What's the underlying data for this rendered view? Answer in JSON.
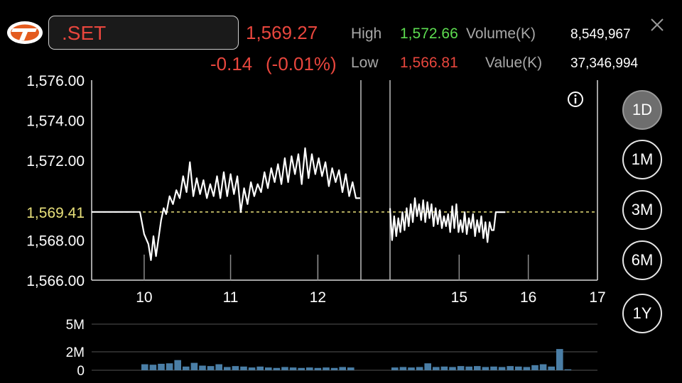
{
  "symbol": ".SET",
  "quote": {
    "last": "1,569.27",
    "change": "-0.14",
    "change_pct": "(-0.01%)",
    "high_label": "High",
    "high": "1,572.66",
    "low_label": "Low",
    "low": "1,566.81",
    "volume_label": "Volume(K)",
    "volume": "8,549,967",
    "value_label": "Value(K)",
    "value": "37,346,994"
  },
  "colors": {
    "down": "#e8463d",
    "up": "#5ddc50",
    "reference": "#e8e07a",
    "volume_bar": "#4a7ea6"
  },
  "icons": {
    "logo": "broker-logo-icon",
    "close": "close-icon",
    "info": "info-icon"
  },
  "periods": [
    {
      "label": "1D",
      "active": true
    },
    {
      "label": "1M",
      "active": false
    },
    {
      "label": "3M",
      "active": false
    },
    {
      "label": "6M",
      "active": false
    },
    {
      "label": "1Y",
      "active": false
    }
  ],
  "chart_data": [
    {
      "type": "line",
      "title": "",
      "ylim": [
        1566,
        1576
      ],
      "y_tick_labels": [
        "1,576.00",
        "1,574.00",
        "1,572.00",
        "1,568.00",
        "1,566.00"
      ],
      "y_ticks": [
        1576,
        1574,
        1572,
        1568,
        1566
      ],
      "reference": {
        "label": "1,569.41",
        "value": 1569.41
      },
      "x_tick_labels": [
        "10",
        "11",
        "12",
        "15",
        "16",
        "17"
      ],
      "sessions": [
        {
          "x_range": [
            9.33,
            12.5
          ],
          "series": [
            [
              9.33,
              1569.41
            ],
            [
              9.9,
              1569.41
            ],
            [
              9.95,
              1568.3
            ],
            [
              10.0,
              1567.8
            ],
            [
              10.03,
              1567.0
            ],
            [
              10.06,
              1568.2
            ],
            [
              10.09,
              1567.2
            ],
            [
              10.12,
              1568.1
            ],
            [
              10.15,
              1569.0
            ],
            [
              10.18,
              1569.6
            ],
            [
              10.21,
              1569.3
            ],
            [
              10.25,
              1570.2
            ],
            [
              10.29,
              1569.8
            ],
            [
              10.33,
              1570.5
            ],
            [
              10.37,
              1570.1
            ],
            [
              10.41,
              1571.2
            ],
            [
              10.45,
              1570.4
            ],
            [
              10.49,
              1571.9
            ],
            [
              10.53,
              1570.2
            ],
            [
              10.57,
              1571.1
            ],
            [
              10.61,
              1570.3
            ],
            [
              10.65,
              1571.0
            ],
            [
              10.69,
              1570.1
            ],
            [
              10.73,
              1570.8
            ],
            [
              10.77,
              1570.2
            ],
            [
              10.81,
              1571.2
            ],
            [
              10.85,
              1570.1
            ],
            [
              10.89,
              1571.4
            ],
            [
              10.93,
              1570.2
            ],
            [
              10.97,
              1571.3
            ],
            [
              11.01,
              1570.3
            ],
            [
              11.05,
              1571.2
            ],
            [
              11.09,
              1569.4
            ],
            [
              11.13,
              1570.6
            ],
            [
              11.17,
              1569.8
            ],
            [
              11.21,
              1570.9
            ],
            [
              11.25,
              1570.2
            ],
            [
              11.29,
              1570.8
            ],
            [
              11.33,
              1570.4
            ],
            [
              11.37,
              1571.4
            ],
            [
              11.41,
              1570.6
            ],
            [
              11.45,
              1571.6
            ],
            [
              11.49,
              1570.9
            ],
            [
              11.53,
              1571.8
            ],
            [
              11.57,
              1570.8
            ],
            [
              11.61,
              1572.1
            ],
            [
              11.65,
              1570.9
            ],
            [
              11.69,
              1572.2
            ],
            [
              11.73,
              1571.3
            ],
            [
              11.77,
              1572.3
            ],
            [
              11.81,
              1570.8
            ],
            [
              11.85,
              1572.6
            ],
            [
              11.89,
              1571.1
            ],
            [
              11.93,
              1572.3
            ],
            [
              11.97,
              1571.3
            ],
            [
              12.01,
              1572.1
            ],
            [
              12.05,
              1571.2
            ],
            [
              12.09,
              1571.9
            ],
            [
              12.13,
              1570.7
            ],
            [
              12.17,
              1571.6
            ],
            [
              12.21,
              1570.9
            ],
            [
              12.25,
              1571.5
            ],
            [
              12.29,
              1570.4
            ],
            [
              12.33,
              1571.3
            ],
            [
              12.37,
              1570.2
            ],
            [
              12.41,
              1570.9
            ],
            [
              12.45,
              1570.1
            ],
            [
              12.5,
              1570.1
            ]
          ]
        },
        {
          "x_range": [
            14.0,
            17.0
          ],
          "series": [
            [
              14.0,
              1569.6
            ],
            [
              14.03,
              1568.0
            ],
            [
              14.06,
              1569.2
            ],
            [
              14.09,
              1568.2
            ],
            [
              14.12,
              1569.1
            ],
            [
              14.15,
              1568.4
            ],
            [
              14.18,
              1569.4
            ],
            [
              14.21,
              1568.5
            ],
            [
              14.24,
              1569.6
            ],
            [
              14.27,
              1568.7
            ],
            [
              14.3,
              1569.8
            ],
            [
              14.33,
              1568.9
            ],
            [
              14.36,
              1570.1
            ],
            [
              14.39,
              1569.2
            ],
            [
              14.42,
              1569.8
            ],
            [
              14.45,
              1569.0
            ],
            [
              14.48,
              1570.0
            ],
            [
              14.51,
              1568.9
            ],
            [
              14.54,
              1569.9
            ],
            [
              14.57,
              1569.1
            ],
            [
              14.6,
              1569.8
            ],
            [
              14.63,
              1568.7
            ],
            [
              14.66,
              1569.6
            ],
            [
              14.69,
              1568.8
            ],
            [
              14.72,
              1569.5
            ],
            [
              14.75,
              1568.6
            ],
            [
              14.78,
              1569.2
            ],
            [
              14.81,
              1568.7
            ],
            [
              14.84,
              1569.3
            ],
            [
              14.87,
              1568.4
            ],
            [
              14.9,
              1569.7
            ],
            [
              14.93,
              1568.6
            ],
            [
              14.96,
              1569.8
            ],
            [
              14.99,
              1568.4
            ],
            [
              15.02,
              1569.0
            ],
            [
              15.05,
              1568.4
            ],
            [
              15.08,
              1569.4
            ],
            [
              15.11,
              1568.3
            ],
            [
              15.14,
              1569.1
            ],
            [
              15.17,
              1568.6
            ],
            [
              15.2,
              1569.3
            ],
            [
              15.23,
              1568.2
            ],
            [
              15.26,
              1569.0
            ],
            [
              15.29,
              1568.4
            ],
            [
              15.32,
              1569.2
            ],
            [
              15.35,
              1568.1
            ],
            [
              15.38,
              1568.9
            ],
            [
              15.41,
              1567.9
            ],
            [
              15.44,
              1568.9
            ],
            [
              15.47,
              1568.5
            ],
            [
              15.5,
              1568.5
            ],
            [
              15.53,
              1569.4
            ],
            [
              15.57,
              1569.4
            ],
            [
              15.62,
              1569.4
            ],
            [
              15.67,
              1569.4
            ]
          ]
        }
      ],
      "session_dividers": [
        12.5,
        14.0
      ]
    },
    {
      "type": "bar",
      "title": "",
      "ylim": [
        0,
        5000000
      ],
      "y_tick_labels": [
        "5M",
        "2M",
        "0"
      ],
      "y_ticks": [
        5000000,
        2000000,
        0
      ],
      "bars_session1": [
        650000,
        600000,
        700000,
        750000,
        1100000,
        400000,
        800000,
        500000,
        450000,
        650000,
        350000,
        450000,
        400000,
        300000,
        400000,
        300000,
        250000,
        350000,
        300000,
        250000,
        300000,
        250000,
        300000,
        250000,
        350000,
        300000
      ],
      "bars_session2": [
        300000,
        350000,
        300000,
        350000,
        750000,
        350000,
        400000,
        350000,
        450000,
        400000,
        450000,
        350000,
        400000,
        350000,
        450000,
        400000,
        350000,
        550000,
        650000,
        400000,
        2300000,
        100000
      ]
    }
  ]
}
